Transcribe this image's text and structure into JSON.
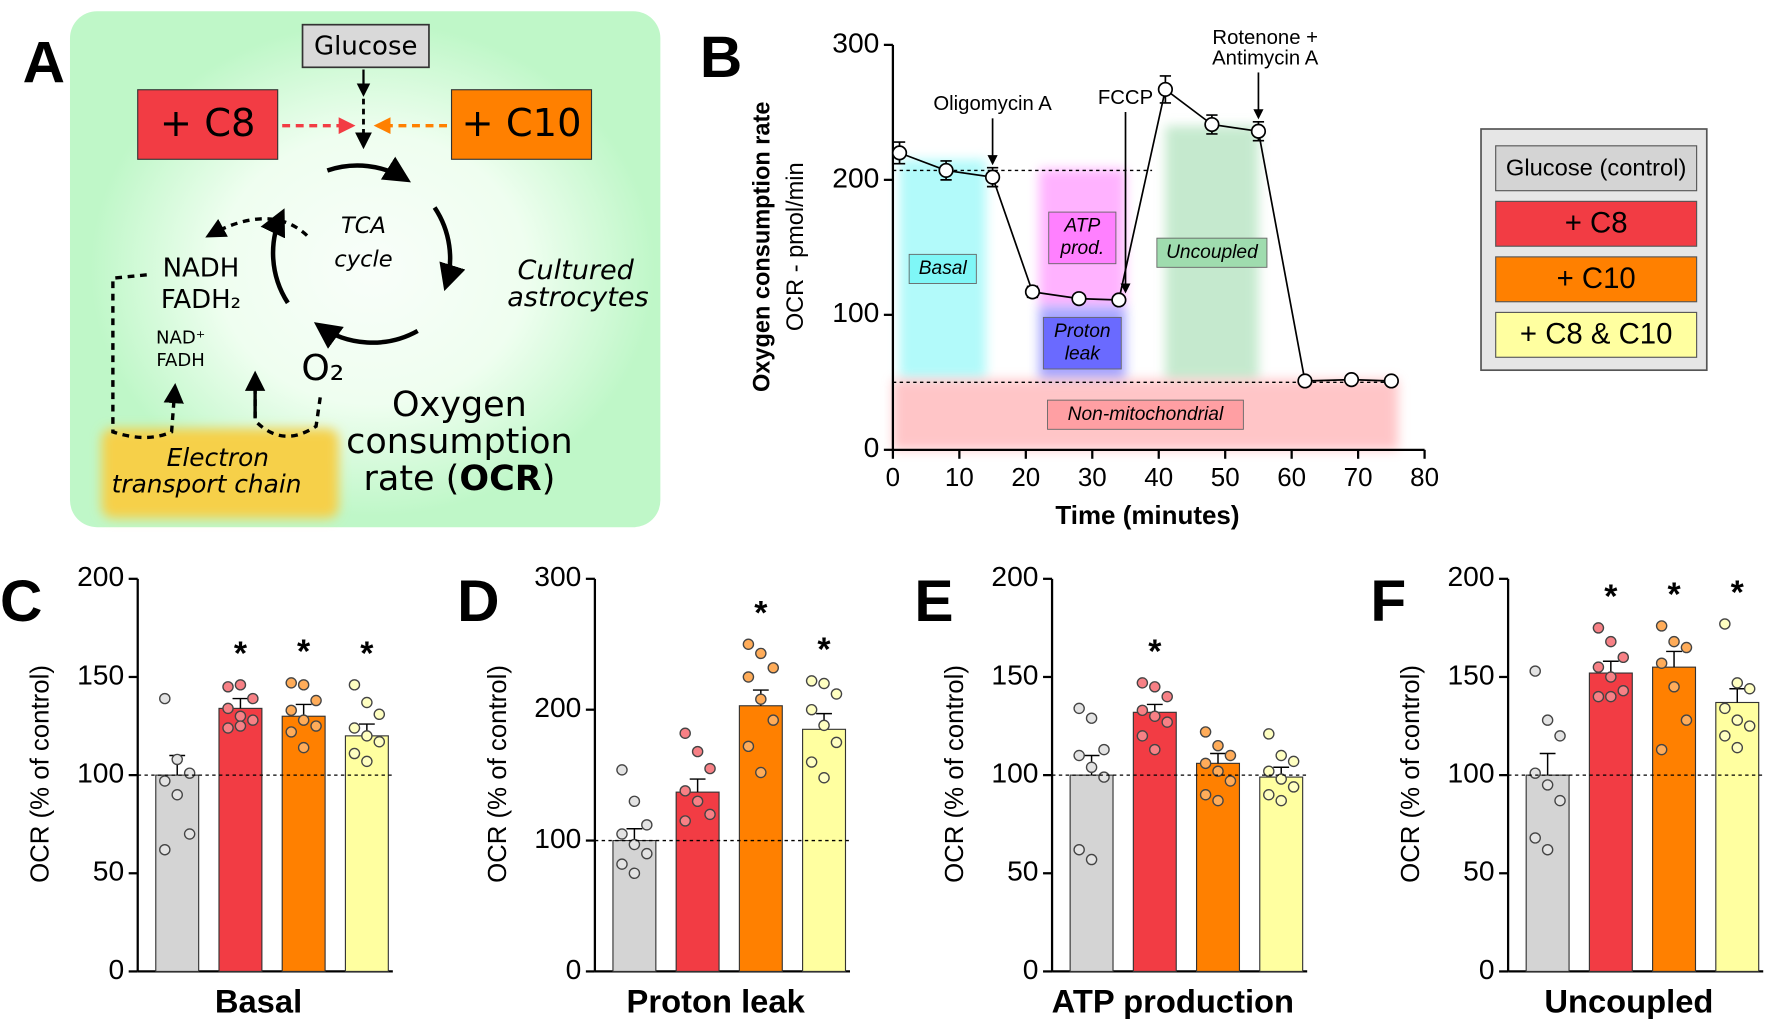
{
  "diagram": {
    "panel": "A",
    "glucose": "Glucose",
    "c8": "+ C8",
    "c10": "+ C10",
    "tca": [
      "TCA",
      "cycle"
    ],
    "reduced": [
      "NADH",
      "FADH₂"
    ],
    "oxidized": [
      "NAD⁺",
      "FADH"
    ],
    "oxygen": "O₂",
    "cells": [
      "Cultured",
      "astrocytes"
    ],
    "etc": [
      "Electron",
      "transport chain"
    ],
    "ocr_lines": [
      "Oxygen",
      "consumption"
    ],
    "ocr_last": [
      "rate (",
      "OCR",
      ")"
    ]
  },
  "legend": {
    "items": [
      {
        "name": "Glucose (control)",
        "color": "#d4d4d4"
      },
      {
        "name": "+ C8",
        "color": "#f23c44"
      },
      {
        "name": "+ C10",
        "color": "#ff8000"
      },
      {
        "name": "+ C8 & C10",
        "color": "#ffffa0"
      }
    ]
  },
  "chart_data": [
    {
      "type": "line",
      "panel": "B",
      "ylabel": [
        "Oxygen consumption rate",
        "OCR - pmol/min"
      ],
      "xlabel": "Time (minutes)",
      "x": [
        1,
        8,
        15,
        21,
        28,
        34,
        41,
        48,
        55,
        62,
        69,
        75
      ],
      "values": [
        220,
        207,
        202,
        117,
        112,
        111,
        267,
        241,
        236,
        51,
        52,
        51
      ],
      "errors": [
        8,
        7,
        7,
        4,
        3,
        3,
        10,
        7,
        7,
        2,
        2,
        2
      ],
      "xlim": [
        0,
        80
      ],
      "xticks": [
        0,
        10,
        20,
        30,
        40,
        50,
        60,
        70,
        80
      ],
      "ylim": [
        0,
        300
      ],
      "yticks": [
        0,
        100,
        200,
        300
      ],
      "hlines": [
        {
          "y": 207,
          "x": [
            0,
            39
          ]
        },
        {
          "y": 50,
          "x": [
            0,
            76
          ]
        }
      ],
      "regions": [
        {
          "label": [
            "Basal"
          ],
          "x": [
            1,
            14
          ],
          "y": [
            53,
            215
          ],
          "color": "#7ff7f7"
        },
        {
          "label": [
            "ATP",
            "prod."
          ],
          "x": [
            22,
            35
          ],
          "y": [
            106,
            208
          ],
          "color": "#ff80ff"
        },
        {
          "label": [
            "Proton",
            "leak"
          ],
          "x": [
            22,
            35
          ],
          "y": [
            52,
            106
          ],
          "color": "#6a6aff"
        },
        {
          "label": [
            "Uncoupled"
          ],
          "x": [
            41,
            55
          ],
          "y": [
            52,
            240
          ],
          "color": "#9fdcae"
        },
        {
          "label": [
            "Non-mitochondrial"
          ],
          "x": [
            0,
            76
          ],
          "y": [
            0,
            52
          ],
          "color": "#ff9fa3"
        }
      ],
      "annotations": [
        {
          "label": [
            "Oligomycin A"
          ],
          "x": 15
        },
        {
          "label": [
            "FCCP"
          ],
          "x": 35
        },
        {
          "label": [
            "Rotenone +",
            "Antimycin A"
          ],
          "x": 55
        }
      ]
    },
    {
      "type": "bar",
      "panel": "C",
      "xlabel": "Basal",
      "ylabel": "OCR (% of control)",
      "categories": [
        null,
        null,
        null,
        null
      ],
      "values": [
        100,
        134,
        130,
        120
      ],
      "errors": [
        10,
        5,
        6,
        6
      ],
      "points": [
        [
          139,
          108,
          101,
          97,
          90,
          70,
          62
        ],
        [
          145,
          146,
          139,
          134,
          130,
          128,
          124,
          125
        ],
        [
          147,
          146,
          138,
          133,
          128,
          125,
          122,
          114
        ],
        [
          146,
          137,
          131,
          124,
          120,
          117,
          111,
          107
        ]
      ],
      "markers": [
        null,
        "*",
        "*",
        "*"
      ],
      "hline": 100,
      "ylim": [
        0,
        200
      ],
      "yticks": [
        0,
        50,
        100,
        150,
        200
      ]
    },
    {
      "type": "bar",
      "panel": "D",
      "xlabel": "Proton leak",
      "ylabel": "OCR (% of control)",
      "categories": [
        null,
        null,
        null,
        null
      ],
      "values": [
        100,
        137,
        203,
        185
      ],
      "errors": [
        9,
        10,
        12,
        12
      ],
      "points": [
        [
          154,
          130,
          112,
          105,
          97,
          90,
          82,
          75
        ],
        [
          182,
          168,
          155,
          138,
          130,
          120,
          115
        ],
        [
          250,
          243,
          232,
          225,
          208,
          192,
          172,
          152
        ],
        [
          222,
          220,
          212,
          200,
          188,
          175,
          160,
          148
        ]
      ],
      "markers": [
        null,
        null,
        "*",
        "*"
      ],
      "hline": 100,
      "ylim": [
        0,
        300
      ],
      "yticks": [
        0,
        100,
        200,
        300
      ]
    },
    {
      "type": "bar",
      "panel": "E",
      "xlabel": "ATP production",
      "ylabel": "OCR (% of control)",
      "categories": [
        null,
        null,
        null,
        null
      ],
      "values": [
        100,
        132,
        106,
        99
      ],
      "errors": [
        10,
        4,
        5,
        5
      ],
      "points": [
        [
          134,
          129,
          113,
          110,
          104,
          99,
          62,
          57
        ],
        [
          147,
          145,
          140,
          133,
          130,
          127,
          120,
          113
        ],
        [
          122,
          115,
          110,
          106,
          102,
          97,
          90,
          87
        ],
        [
          121,
          110,
          107,
          102,
          98,
          94,
          90,
          87
        ]
      ],
      "markers": [
        null,
        "*",
        null,
        null
      ],
      "hline": 100,
      "ylim": [
        0,
        200
      ],
      "yticks": [
        0,
        50,
        100,
        150,
        200
      ]
    },
    {
      "type": "bar",
      "panel": "F",
      "xlabel": "Uncoupled",
      "ylabel": "OCR (% of control)",
      "categories": [
        null,
        null,
        null,
        null
      ],
      "values": [
        100,
        152,
        155,
        137
      ],
      "errors": [
        11,
        6,
        8,
        7
      ],
      "points": [
        [
          153,
          128,
          120,
          101,
          95,
          87,
          68,
          62
        ],
        [
          175,
          168,
          160,
          155,
          150,
          143,
          140,
          140
        ],
        [
          176,
          168,
          165,
          157,
          145,
          128,
          113
        ],
        [
          177,
          147,
          144,
          134,
          128,
          125,
          120,
          114
        ]
      ],
      "markers": [
        null,
        "*",
        "*",
        "*"
      ],
      "hline": 100,
      "ylim": [
        0,
        200
      ],
      "yticks": [
        0,
        50,
        100,
        150,
        200
      ]
    }
  ]
}
